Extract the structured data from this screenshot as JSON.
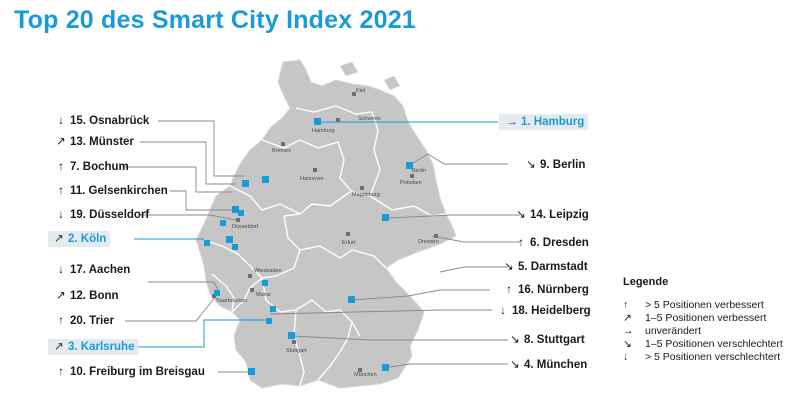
{
  "title": "Top 20 des Smart City Index 2021",
  "colors": {
    "accent": "#1a9bd7",
    "map_fill": "#c6c6c6",
    "border": "#ffffff",
    "marker": "#1a9bd7"
  },
  "rank_labels_left": [
    {
      "arrow": "↓",
      "text": "15. Osnabrück",
      "highlight": false
    },
    {
      "arrow": "↗",
      "text": "13. Münster",
      "highlight": false
    },
    {
      "arrow": "↑",
      "text": "7. Bochum",
      "highlight": false
    },
    {
      "arrow": "↑",
      "text": "11. Gelsenkirchen",
      "highlight": false
    },
    {
      "arrow": "↓",
      "text": "19. Düsseldorf",
      "highlight": false
    },
    {
      "arrow": "↗",
      "text": "2. Köln",
      "highlight": true
    },
    {
      "arrow": "↓",
      "text": "17. Aachen",
      "highlight": false
    },
    {
      "arrow": "↗",
      "text": "12. Bonn",
      "highlight": false
    },
    {
      "arrow": "↑",
      "text": "20. Trier",
      "highlight": false
    },
    {
      "arrow": "↗",
      "text": "3. Karlsruhe",
      "highlight": true
    },
    {
      "arrow": "↑",
      "text": "10. Freiburg im Breisgau",
      "highlight": false
    }
  ],
  "rank_labels_right": [
    {
      "arrow": "→",
      "text": "1. Hamburg",
      "highlight": true
    },
    {
      "arrow": "↘",
      "text": "9. Berlin",
      "highlight": false
    },
    {
      "arrow": "↘",
      "text": "14. Leipzig",
      "highlight": false
    },
    {
      "arrow": "↑",
      "text": "6. Dresden",
      "highlight": false
    },
    {
      "arrow": "↘",
      "text": "5. Darmstadt",
      "highlight": false
    },
    {
      "arrow": "↑",
      "text": "16. Nürnberg",
      "highlight": false
    },
    {
      "arrow": "↓",
      "text": "18. Heidelberg",
      "highlight": false
    },
    {
      "arrow": "↘",
      "text": "8. Stuttgart",
      "highlight": false
    },
    {
      "arrow": "↘",
      "text": "4. München",
      "highlight": false
    }
  ],
  "map_places": [
    "Kiel",
    "Schwerin",
    "Hamburg",
    "Bremen",
    "Hannover",
    "Berlin",
    "Potsdam",
    "Magdeburg",
    "Düsseldorf",
    "Erfurt",
    "Dresden",
    "Wiesbaden",
    "Mainz",
    "Saarbrücken",
    "Stuttgart",
    "München"
  ],
  "legend": {
    "title": "Legende",
    "items": [
      {
        "arrow": "↑",
        "text": "> 5 Positionen verbessert"
      },
      {
        "arrow": "↗",
        "text": "1–5 Positionen verbessert"
      },
      {
        "arrow": "→",
        "text": "unverändert"
      },
      {
        "arrow": "↘",
        "text": "1–5 Positionen verschlechtert"
      },
      {
        "arrow": "↓",
        "text": "> 5 Positionen verschlechtert"
      }
    ]
  }
}
